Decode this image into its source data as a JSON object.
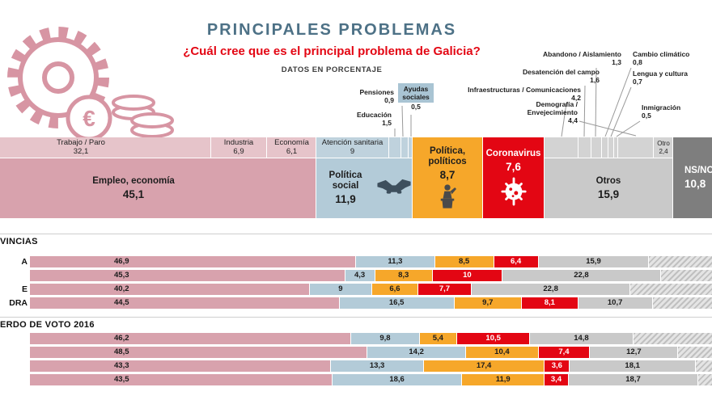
{
  "header": {
    "title": "PRINCIPALES PROBLEMAS",
    "subtitle": "¿Cuál cree que es el principal problema de Galicia?",
    "note": "DATOS EN PORCENTAJE"
  },
  "colors": {
    "title_blue": "#4d7186",
    "accent_red": "#e30613",
    "empleo": "#d8a2ad",
    "empleo_strip": "#e6c4ca",
    "social": "#b3cbd8",
    "social_strip": "#bfd2dd",
    "politicos": "#f6a72a",
    "coronavirus": "#e30613",
    "otros": "#c9c9c9",
    "otros_strip": "#d3d3d3",
    "nsnc": "#7e7e7e",
    "illustration_pink": "#d795a3",
    "callout_box_blue": "#a9c4d3"
  },
  "chart_data": {
    "type": "bar",
    "stacked": true,
    "unit": "%",
    "title": "PRINCIPALES PROBLEMAS",
    "subtitle": "¿Cuál cree que es el principal problema de Galicia?",
    "main_groups": [
      {
        "label": "Empleo, economía",
        "value": 45.1,
        "display": "45,1",
        "color": "empleo",
        "strip_color": "empleo_strip",
        "sub": [
          {
            "label": "Trabajo / Paro",
            "value": 32.1,
            "display": "32,1",
            "on_bar": true
          },
          {
            "label": "Industria",
            "value": 6.9,
            "display": "6,9",
            "on_bar": true
          },
          {
            "label": "Economía",
            "value": 6.1,
            "display": "6,1",
            "on_bar": true
          }
        ]
      },
      {
        "label": "Política social",
        "value": 11.9,
        "display": "11,9",
        "color": "social",
        "strip_color": "social_strip",
        "icon": "handshake-icon",
        "sub": [
          {
            "label": "Atención sanitaria",
            "value": 9,
            "display": "9",
            "on_bar": true
          },
          {
            "label": "Educación",
            "value": 1.5,
            "display": "1,5"
          },
          {
            "label": "Pensiones",
            "value": 0.9,
            "display": "0,9"
          },
          {
            "label": "Ayudas sociales",
            "value": 0.5,
            "display": "0,5",
            "boxed": true
          }
        ]
      },
      {
        "label": "Política, políticos",
        "value": 8.7,
        "display": "8,7",
        "color": "politicos",
        "icon": "speaker-icon"
      },
      {
        "label": "Coronavirus",
        "value": 7.6,
        "display": "7,6",
        "color": "coronavirus",
        "icon": "virus-icon",
        "text_color": "#ffffff"
      },
      {
        "label": "Otros",
        "value": 15.9,
        "display": "15,9",
        "color": "otros",
        "strip_color": "otros_strip",
        "sub": [
          {
            "label": "Infraestructuras / Comunicaciones",
            "value": 4.2,
            "display": "4,2"
          },
          {
            "label": "Desatención del campo",
            "value": 1.6,
            "display": "1,6"
          },
          {
            "label": "Abandono / Aislamiento",
            "value": 1.3,
            "display": "1,3"
          },
          {
            "label": "Cambio climático",
            "value": 0.8,
            "display": "0,8"
          },
          {
            "label": "Lengua y cultura",
            "value": 0.7,
            "display": "0,7"
          },
          {
            "label": "Inmigración",
            "value": 0.5,
            "display": "0,5"
          },
          {
            "label": "Demografía / Envejecimiento",
            "value": 4.4,
            "display": "4,4"
          },
          {
            "label": "Otro",
            "value": 2.4,
            "display": "2,4",
            "on_bar": true
          }
        ]
      },
      {
        "label": "NS/NC",
        "value": 10.8,
        "display": "10,8",
        "color": "nsnc",
        "text_color": "#ffffff",
        "align": "left"
      }
    ],
    "series": [
      "empleo",
      "social",
      "politicos",
      "coronavirus",
      "otros"
    ],
    "sections": [
      {
        "heading": "VINCIAS",
        "rows": [
          {
            "label": "A",
            "segments": [
              {
                "value": 46.9,
                "display": "46,9"
              },
              {
                "value": 11.3,
                "display": "11,3"
              },
              {
                "value": 8.5,
                "display": "8,5"
              },
              {
                "value": 6.4,
                "display": "6,4"
              },
              {
                "value": 15.9,
                "display": "15,9"
              }
            ]
          },
          {
            "label": "",
            "segments": [
              {
                "value": 45.3,
                "display": "45,3"
              },
              {
                "value": 4.3,
                "display": "4,3"
              },
              {
                "value": 8.3,
                "display": "8,3"
              },
              {
                "value": 10,
                "display": "10"
              },
              {
                "value": 22.8,
                "display": "22,8"
              }
            ]
          },
          {
            "label": "E",
            "segments": [
              {
                "value": 40.2,
                "display": "40,2"
              },
              {
                "value": 9,
                "display": "9"
              },
              {
                "value": 6.6,
                "display": "6,6"
              },
              {
                "value": 7.7,
                "display": "7,7"
              },
              {
                "value": 22.8,
                "display": "22,8"
              }
            ]
          },
          {
            "label": "DRA",
            "segments": [
              {
                "value": 44.5,
                "display": "44,5"
              },
              {
                "value": 16.5,
                "display": "16,5"
              },
              {
                "value": 9.7,
                "display": "9,7"
              },
              {
                "value": 8.1,
                "display": "8,1"
              },
              {
                "value": 10.7,
                "display": "10,7"
              }
            ]
          }
        ]
      },
      {
        "heading": "ERDO DE VOTO 2016",
        "rows": [
          {
            "label": "",
            "segments": [
              {
                "value": 46.2,
                "display": "46,2"
              },
              {
                "value": 9.8,
                "display": "9,8"
              },
              {
                "value": 5.4,
                "display": "5,4"
              },
              {
                "value": 10.5,
                "display": "10,5"
              },
              {
                "value": 14.8,
                "display": "14,8"
              }
            ]
          },
          {
            "label": "",
            "segments": [
              {
                "value": 48.5,
                "display": "48,5"
              },
              {
                "value": 14.2,
                "display": "14,2"
              },
              {
                "value": 10.4,
                "display": "10,4"
              },
              {
                "value": 7.4,
                "display": "7,4"
              },
              {
                "value": 12.7,
                "display": "12,7"
              }
            ]
          },
          {
            "label": "",
            "segments": [
              {
                "value": 43.3,
                "display": "43,3"
              },
              {
                "value": 13.3,
                "display": "13,3"
              },
              {
                "value": 17.4,
                "display": "17,4"
              },
              {
                "value": 3.6,
                "display": "3,6"
              },
              {
                "value": 18.1,
                "display": "18,1"
              }
            ]
          },
          {
            "label": "",
            "segments": [
              {
                "value": 43.5,
                "display": "43,5"
              },
              {
                "value": 18.6,
                "display": "18,6"
              },
              {
                "value": 11.9,
                "display": "11,9"
              },
              {
                "value": 3.4,
                "display": "3,4"
              },
              {
                "value": 18.7,
                "display": "18,7"
              }
            ]
          }
        ]
      }
    ]
  }
}
